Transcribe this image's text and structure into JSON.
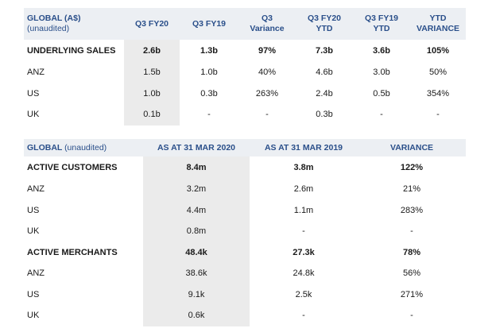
{
  "table1": {
    "header": {
      "label_line1": "GLOBAL (A$)",
      "label_line2": "(unaudited)",
      "columns": [
        {
          "line1": "Q3 FY20",
          "line2": ""
        },
        {
          "line1": "Q3 FY19",
          "line2": ""
        },
        {
          "line1": "Q3",
          "line2": "Variance"
        },
        {
          "line1": "Q3 FY20",
          "line2": "YTD"
        },
        {
          "line1": "Q3 FY19",
          "line2": "YTD"
        },
        {
          "line1": "YTD",
          "line2": "VARIANCE"
        }
      ]
    },
    "rows": [
      {
        "label": "UNDERLYING SALES",
        "values": [
          "2.6b",
          "1.3b",
          "97%",
          "7.3b",
          "3.6b",
          "105%"
        ]
      },
      {
        "label": "ANZ",
        "values": [
          "1.5b",
          "1.0b",
          "40%",
          "4.6b",
          "3.0b",
          "50%"
        ]
      },
      {
        "label": "US",
        "values": [
          "1.0b",
          "0.3b",
          "263%",
          "2.4b",
          "0.5b",
          "354%"
        ]
      },
      {
        "label": "UK",
        "values": [
          "0.1b",
          "-",
          "-",
          "0.3b",
          "-",
          "-"
        ]
      }
    ]
  },
  "table2": {
    "header": {
      "label_main": "GLOBAL",
      "label_sub": "(unaudited)",
      "columns": [
        "AS AT 31 MAR 2020",
        "AS AT 31 MAR 2019",
        "VARIANCE"
      ]
    },
    "rows": [
      {
        "label": "ACTIVE CUSTOMERS",
        "values": [
          "8.4m",
          "3.8m",
          "122%"
        ]
      },
      {
        "label": "ANZ",
        "values": [
          "3.2m",
          "2.6m",
          "21%"
        ]
      },
      {
        "label": "US",
        "values": [
          "4.4m",
          "1.1m",
          "283%"
        ]
      },
      {
        "label": "UK",
        "values": [
          "0.8m",
          "-",
          "-"
        ]
      },
      {
        "label": "ACTIVE MERCHANTS",
        "values": [
          "48.4k",
          "27.3k",
          "78%"
        ]
      },
      {
        "label": "ANZ",
        "values": [
          "38.6k",
          "24.8k",
          "56%"
        ]
      },
      {
        "label": "US",
        "values": [
          "9.1k",
          "2.5k",
          "271%"
        ]
      },
      {
        "label": "UK",
        "values": [
          "0.6k",
          "-",
          "-"
        ]
      }
    ]
  }
}
